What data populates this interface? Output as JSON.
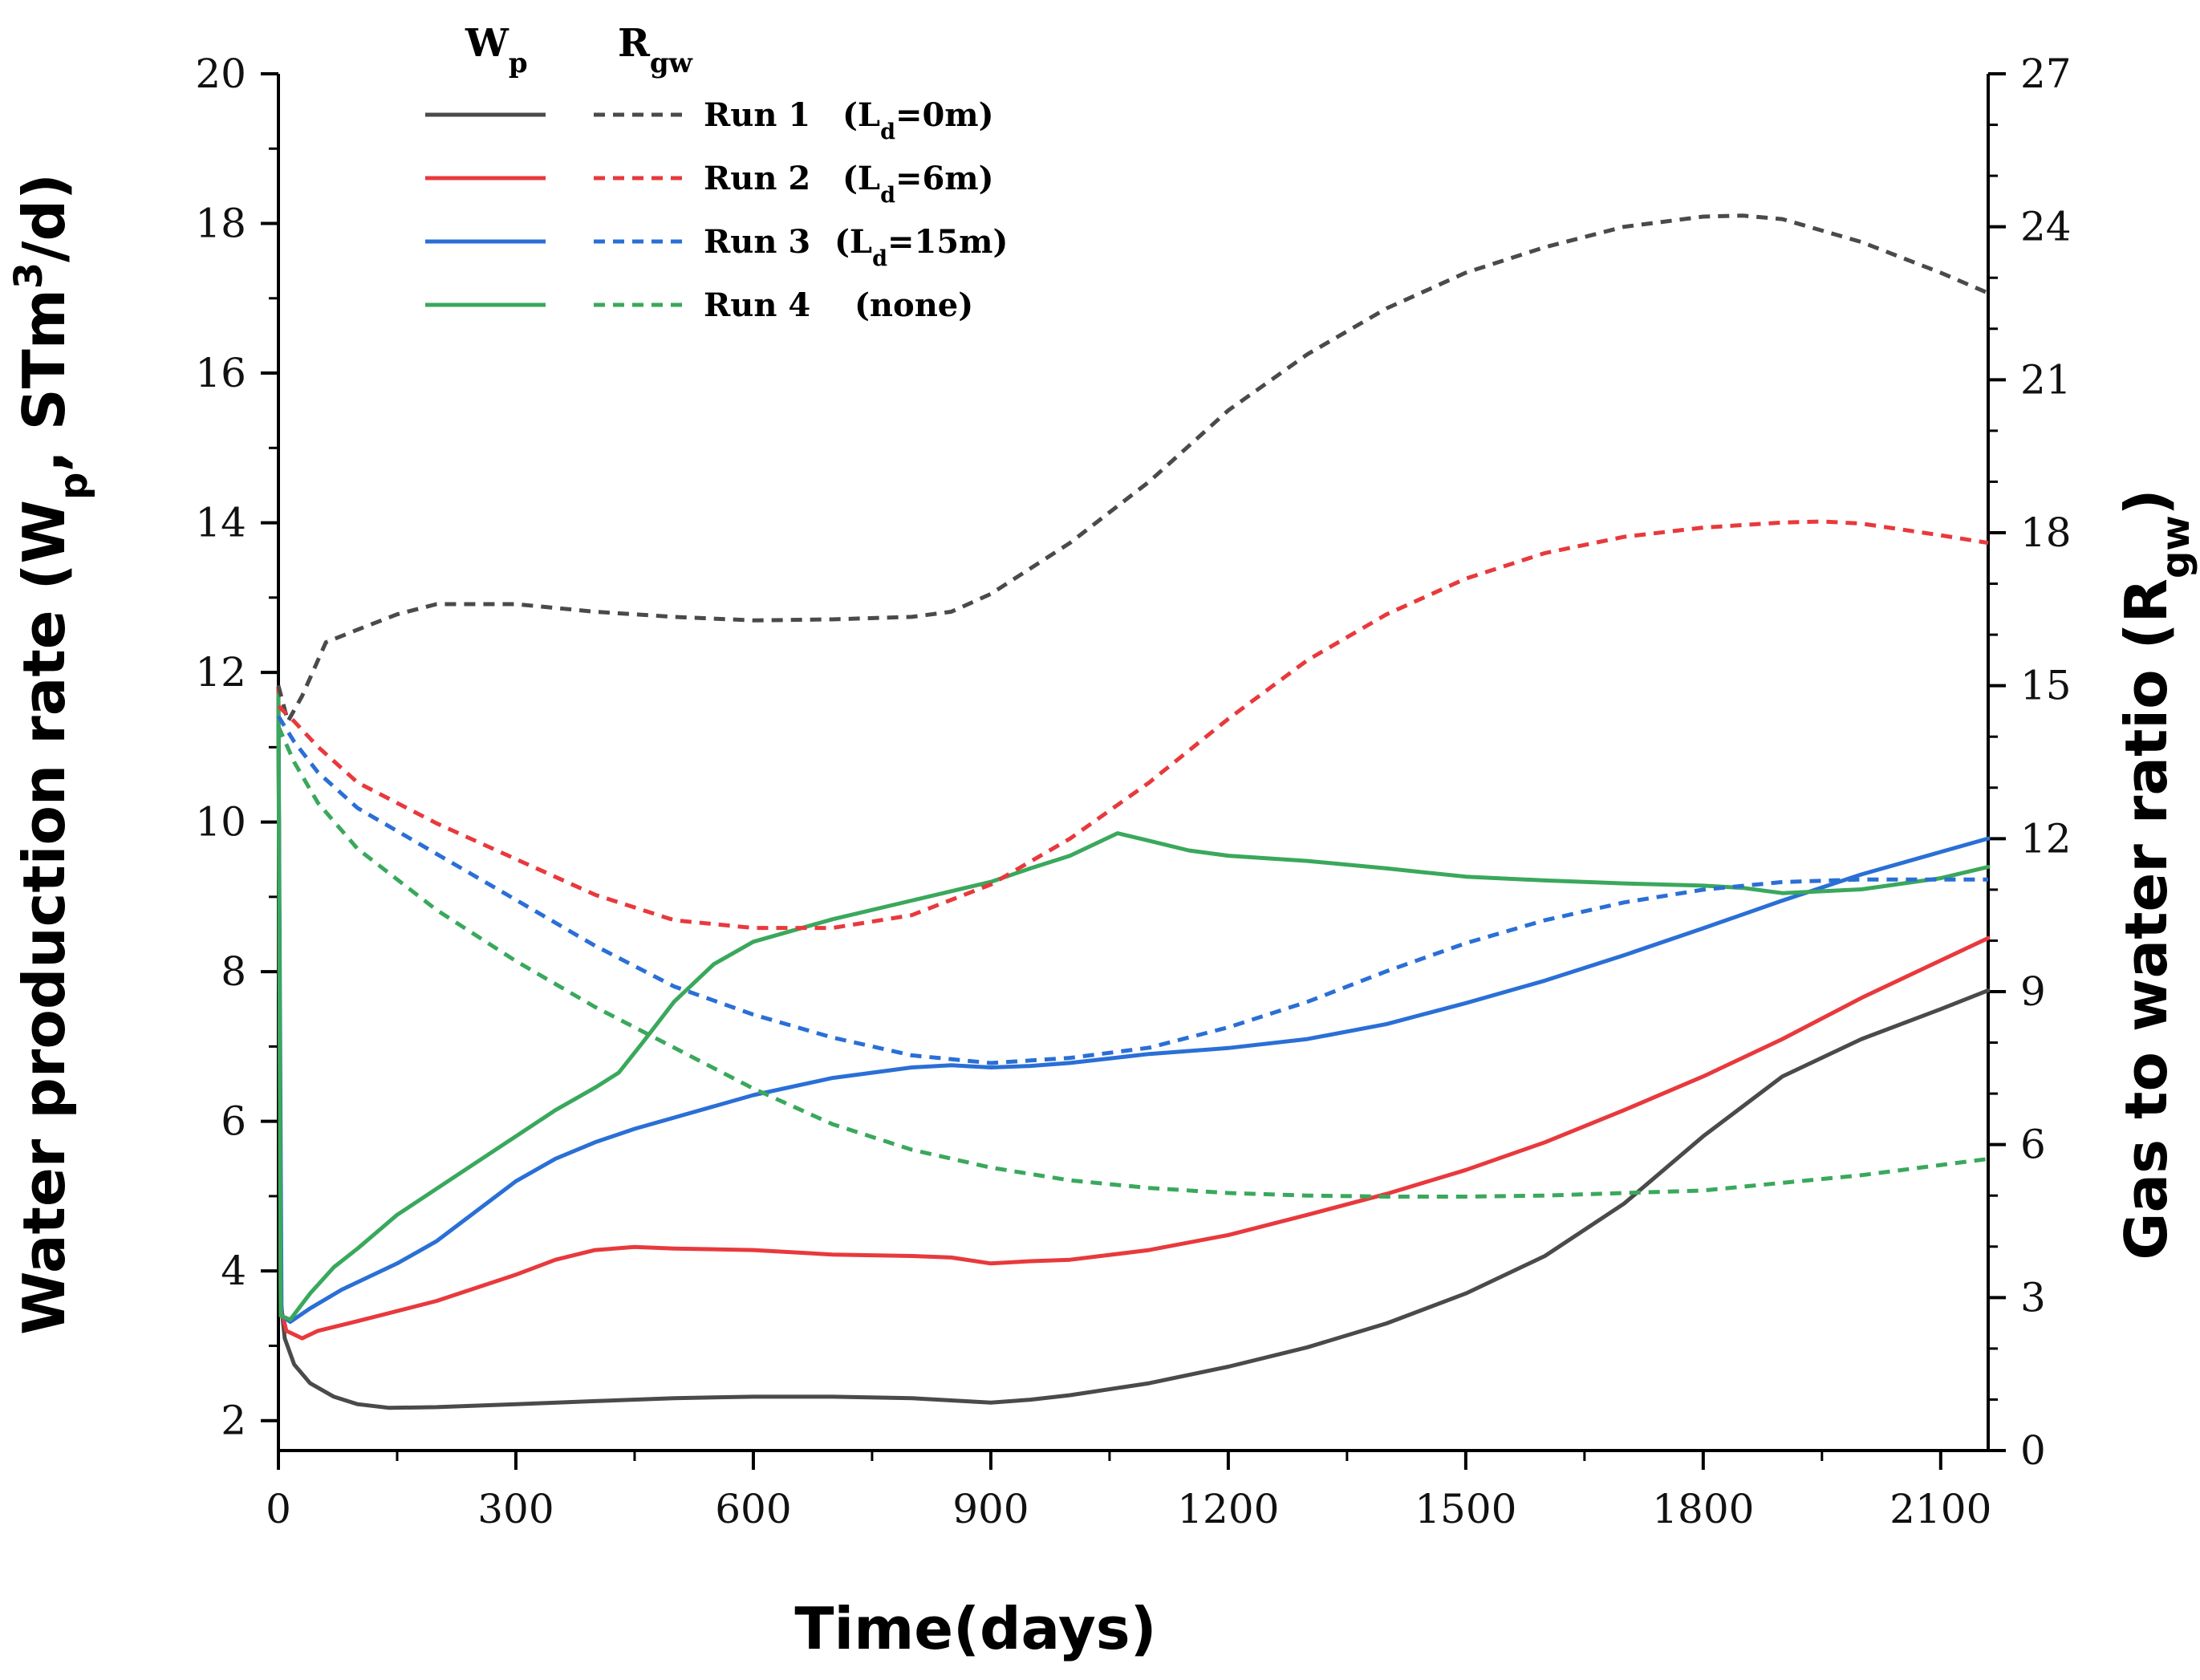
{
  "chart_data": {
    "type": "line",
    "xlabel": "Time(days)",
    "ylabel_left": {
      "main": "Water production rate (W",
      "sub1": "p",
      "mid": ", STm",
      "sup": "3",
      "end": "/d)"
    },
    "ylabel_right": {
      "main": "Gas to water ratio (R",
      "sub": "gw",
      "end": ")"
    },
    "xlim": [
      0,
      2160
    ],
    "ylim_left": [
      1.6,
      20
    ],
    "ylim_right": [
      0,
      27
    ],
    "x_ticks": [
      0,
      300,
      600,
      900,
      1200,
      1500,
      1800,
      2100
    ],
    "x_tick_labels": [
      "0",
      "300",
      "600",
      "900",
      "1200",
      "1500",
      "1800",
      "2100"
    ],
    "y_left_ticks": [
      2,
      4,
      6,
      8,
      10,
      12,
      14,
      16,
      18,
      20
    ],
    "y_left_tick_labels": [
      "2",
      "4",
      "6",
      "8",
      "10",
      "12",
      "14",
      "16",
      "18",
      "20"
    ],
    "y_right_ticks": [
      0,
      3,
      6,
      9,
      12,
      15,
      18,
      21,
      24,
      27
    ],
    "y_right_tick_labels": [
      "0",
      "3",
      "6",
      "9",
      "12",
      "15",
      "18",
      "21",
      "24",
      "27"
    ],
    "legend": {
      "header_wp": {
        "main": "W",
        "sub": "p"
      },
      "header_rgw": {
        "main": "R",
        "sub": "gw"
      },
      "placement": "top-left",
      "entries": [
        {
          "run": "Run 1",
          "pre": "(L",
          "sub": "d",
          "post": "=0m)"
        },
        {
          "run": "Run 2",
          "pre": "(L",
          "sub": "d",
          "post": "=6m)"
        },
        {
          "run": "Run 3",
          "pre": "(L",
          "sub": "d",
          "post": "=15m)"
        },
        {
          "run": "Run 4",
          "pre": "(none)",
          "sub": "",
          "post": ""
        }
      ]
    },
    "series": [
      {
        "name": "Run 1 Wp",
        "axis": "left",
        "style": "solid",
        "color": "#4a4a4a",
        "points": [
          [
            0,
            11.5
          ],
          [
            3,
            3.6
          ],
          [
            8,
            3.1
          ],
          [
            20,
            2.75
          ],
          [
            40,
            2.5
          ],
          [
            70,
            2.32
          ],
          [
            100,
            2.22
          ],
          [
            140,
            2.17
          ],
          [
            200,
            2.18
          ],
          [
            300,
            2.22
          ],
          [
            400,
            2.26
          ],
          [
            500,
            2.3
          ],
          [
            600,
            2.32
          ],
          [
            700,
            2.32
          ],
          [
            800,
            2.3
          ],
          [
            850,
            2.27
          ],
          [
            900,
            2.24
          ],
          [
            950,
            2.28
          ],
          [
            1000,
            2.34
          ],
          [
            1100,
            2.5
          ],
          [
            1200,
            2.72
          ],
          [
            1300,
            2.98
          ],
          [
            1400,
            3.3
          ],
          [
            1500,
            3.7
          ],
          [
            1600,
            4.2
          ],
          [
            1700,
            4.9
          ],
          [
            1800,
            5.8
          ],
          [
            1900,
            6.6
          ],
          [
            2000,
            7.1
          ],
          [
            2100,
            7.5
          ],
          [
            2160,
            7.75
          ]
        ]
      },
      {
        "name": "Run 2 Wp",
        "axis": "left",
        "style": "solid",
        "color": "#e8393c",
        "points": [
          [
            0,
            11.8
          ],
          [
            3,
            3.5
          ],
          [
            10,
            3.2
          ],
          [
            30,
            3.1
          ],
          [
            50,
            3.2
          ],
          [
            100,
            3.33
          ],
          [
            200,
            3.6
          ],
          [
            300,
            3.95
          ],
          [
            350,
            4.15
          ],
          [
            400,
            4.28
          ],
          [
            450,
            4.32
          ],
          [
            500,
            4.3
          ],
          [
            600,
            4.28
          ],
          [
            700,
            4.22
          ],
          [
            800,
            4.2
          ],
          [
            850,
            4.18
          ],
          [
            900,
            4.1
          ],
          [
            950,
            4.13
          ],
          [
            1000,
            4.15
          ],
          [
            1100,
            4.28
          ],
          [
            1200,
            4.48
          ],
          [
            1300,
            4.75
          ],
          [
            1400,
            5.03
          ],
          [
            1500,
            5.35
          ],
          [
            1600,
            5.72
          ],
          [
            1700,
            6.15
          ],
          [
            1800,
            6.6
          ],
          [
            1900,
            7.1
          ],
          [
            2000,
            7.65
          ],
          [
            2100,
            8.15
          ],
          [
            2160,
            8.45
          ]
        ]
      },
      {
        "name": "Run 3 Wp",
        "axis": "left",
        "style": "solid",
        "color": "#2a6fd6",
        "points": [
          [
            0,
            11.6
          ],
          [
            4,
            3.4
          ],
          [
            15,
            3.32
          ],
          [
            40,
            3.5
          ],
          [
            80,
            3.75
          ],
          [
            150,
            4.1
          ],
          [
            200,
            4.4
          ],
          [
            250,
            4.8
          ],
          [
            300,
            5.2
          ],
          [
            350,
            5.5
          ],
          [
            400,
            5.72
          ],
          [
            450,
            5.9
          ],
          [
            500,
            6.05
          ],
          [
            600,
            6.35
          ],
          [
            700,
            6.58
          ],
          [
            800,
            6.72
          ],
          [
            850,
            6.75
          ],
          [
            900,
            6.72
          ],
          [
            950,
            6.74
          ],
          [
            1000,
            6.78
          ],
          [
            1100,
            6.9
          ],
          [
            1200,
            6.98
          ],
          [
            1300,
            7.1
          ],
          [
            1400,
            7.3
          ],
          [
            1500,
            7.58
          ],
          [
            1600,
            7.88
          ],
          [
            1700,
            8.22
          ],
          [
            1800,
            8.58
          ],
          [
            1900,
            8.95
          ],
          [
            2000,
            9.3
          ],
          [
            2100,
            9.6
          ],
          [
            2160,
            9.78
          ]
        ]
      },
      {
        "name": "Run 4 Wp",
        "axis": "left",
        "style": "solid",
        "color": "#3aa85c",
        "points": [
          [
            0,
            11.7
          ],
          [
            3,
            3.4
          ],
          [
            15,
            3.35
          ],
          [
            40,
            3.7
          ],
          [
            70,
            4.05
          ],
          [
            100,
            4.3
          ],
          [
            150,
            4.75
          ],
          [
            200,
            5.1
          ],
          [
            250,
            5.45
          ],
          [
            300,
            5.8
          ],
          [
            350,
            6.15
          ],
          [
            400,
            6.45
          ],
          [
            430,
            6.65
          ],
          [
            460,
            7.05
          ],
          [
            500,
            7.6
          ],
          [
            550,
            8.1
          ],
          [
            600,
            8.4
          ],
          [
            650,
            8.55
          ],
          [
            700,
            8.7
          ],
          [
            800,
            8.95
          ],
          [
            900,
            9.2
          ],
          [
            950,
            9.38
          ],
          [
            1000,
            9.55
          ],
          [
            1060,
            9.85
          ],
          [
            1100,
            9.75
          ],
          [
            1150,
            9.62
          ],
          [
            1200,
            9.55
          ],
          [
            1300,
            9.48
          ],
          [
            1400,
            9.38
          ],
          [
            1500,
            9.27
          ],
          [
            1600,
            9.22
          ],
          [
            1700,
            9.18
          ],
          [
            1800,
            9.15
          ],
          [
            1850,
            9.12
          ],
          [
            1900,
            9.05
          ],
          [
            2000,
            9.1
          ],
          [
            2100,
            9.25
          ],
          [
            2160,
            9.4
          ]
        ]
      },
      {
        "name": "Run 1 Rgw",
        "axis": "right",
        "style": "dashed",
        "color": "#4a4a4a",
        "points": [
          [
            0,
            15.0
          ],
          [
            12,
            14.3
          ],
          [
            30,
            14.8
          ],
          [
            60,
            15.85
          ],
          [
            100,
            16.1
          ],
          [
            150,
            16.4
          ],
          [
            200,
            16.6
          ],
          [
            300,
            16.6
          ],
          [
            400,
            16.45
          ],
          [
            500,
            16.35
          ],
          [
            600,
            16.28
          ],
          [
            700,
            16.3
          ],
          [
            800,
            16.35
          ],
          [
            850,
            16.45
          ],
          [
            900,
            16.8
          ],
          [
            1000,
            17.8
          ],
          [
            1100,
            19.0
          ],
          [
            1200,
            20.4
          ],
          [
            1300,
            21.5
          ],
          [
            1400,
            22.4
          ],
          [
            1500,
            23.1
          ],
          [
            1600,
            23.6
          ],
          [
            1700,
            24.0
          ],
          [
            1800,
            24.2
          ],
          [
            1850,
            24.22
          ],
          [
            1900,
            24.15
          ],
          [
            2000,
            23.7
          ],
          [
            2100,
            23.1
          ],
          [
            2160,
            22.7
          ]
        ]
      },
      {
        "name": "Run 2 Rgw",
        "axis": "right",
        "style": "dashed",
        "color": "#e8393c",
        "points": [
          [
            0,
            14.6
          ],
          [
            20,
            14.3
          ],
          [
            50,
            13.8
          ],
          [
            100,
            13.1
          ],
          [
            200,
            12.3
          ],
          [
            300,
            11.6
          ],
          [
            400,
            10.9
          ],
          [
            500,
            10.4
          ],
          [
            600,
            10.25
          ],
          [
            700,
            10.25
          ],
          [
            800,
            10.5
          ],
          [
            900,
            11.1
          ],
          [
            1000,
            12.0
          ],
          [
            1100,
            13.1
          ],
          [
            1200,
            14.35
          ],
          [
            1300,
            15.5
          ],
          [
            1400,
            16.4
          ],
          [
            1500,
            17.1
          ],
          [
            1600,
            17.6
          ],
          [
            1700,
            17.92
          ],
          [
            1800,
            18.1
          ],
          [
            1900,
            18.2
          ],
          [
            1950,
            18.22
          ],
          [
            2000,
            18.18
          ],
          [
            2100,
            17.95
          ],
          [
            2160,
            17.8
          ]
        ]
      },
      {
        "name": "Run 3 Rgw",
        "axis": "right",
        "style": "dashed",
        "color": "#2a6fd6",
        "points": [
          [
            0,
            14.4
          ],
          [
            20,
            13.9
          ],
          [
            50,
            13.3
          ],
          [
            100,
            12.6
          ],
          [
            200,
            11.7
          ],
          [
            300,
            10.8
          ],
          [
            400,
            9.9
          ],
          [
            500,
            9.1
          ],
          [
            600,
            8.55
          ],
          [
            700,
            8.1
          ],
          [
            800,
            7.75
          ],
          [
            900,
            7.6
          ],
          [
            1000,
            7.7
          ],
          [
            1100,
            7.9
          ],
          [
            1200,
            8.3
          ],
          [
            1300,
            8.8
          ],
          [
            1400,
            9.4
          ],
          [
            1500,
            9.95
          ],
          [
            1600,
            10.4
          ],
          [
            1700,
            10.75
          ],
          [
            1800,
            11.0
          ],
          [
            1900,
            11.15
          ],
          [
            2000,
            11.2
          ],
          [
            2100,
            11.2
          ],
          [
            2160,
            11.2
          ]
        ]
      },
      {
        "name": "Run 4 Rgw",
        "axis": "right",
        "style": "dashed",
        "color": "#3aa85c",
        "points": [
          [
            0,
            14.2
          ],
          [
            20,
            13.5
          ],
          [
            50,
            12.7
          ],
          [
            100,
            11.8
          ],
          [
            200,
            10.6
          ],
          [
            300,
            9.6
          ],
          [
            400,
            8.7
          ],
          [
            500,
            7.9
          ],
          [
            600,
            7.1
          ],
          [
            700,
            6.4
          ],
          [
            800,
            5.9
          ],
          [
            900,
            5.55
          ],
          [
            1000,
            5.3
          ],
          [
            1100,
            5.15
          ],
          [
            1200,
            5.05
          ],
          [
            1300,
            5.0
          ],
          [
            1400,
            4.98
          ],
          [
            1500,
            4.98
          ],
          [
            1600,
            5.0
          ],
          [
            1700,
            5.05
          ],
          [
            1800,
            5.1
          ],
          [
            1900,
            5.25
          ],
          [
            2000,
            5.4
          ],
          [
            2100,
            5.6
          ],
          [
            2160,
            5.72
          ]
        ]
      }
    ]
  }
}
